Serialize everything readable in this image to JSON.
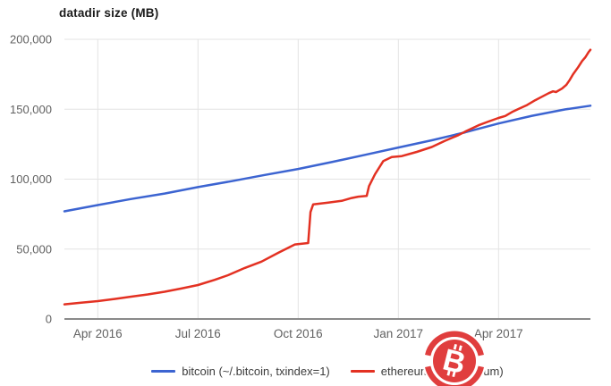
{
  "chart_data": {
    "type": "line",
    "title": "datadir size (MB)",
    "xlabel": "",
    "ylabel": "",
    "x_unit": "months since 2016-03 (0 = Mar 2016, 15.75 = late Jun 2017)",
    "xlim_t": [
      0,
      15.75
    ],
    "ylim": [
      0,
      200000
    ],
    "grid": true,
    "legend_position": "bottom",
    "gridline_color": "#e3e3e3",
    "baseline_color": "#8a8a8a",
    "tick_label_color": "#616161",
    "x_ticks": [
      {
        "label": "Apr 2016",
        "t": 1
      },
      {
        "label": "Jul 2016",
        "t": 4
      },
      {
        "label": "Oct 2016",
        "t": 7
      },
      {
        "label": "Jan 2017",
        "t": 10
      },
      {
        "label": "Apr 2017",
        "t": 13
      }
    ],
    "y_ticks": [
      {
        "label": "0",
        "v": 0
      },
      {
        "label": "50,000",
        "v": 50000
      },
      {
        "label": "100,000",
        "v": 100000
      },
      {
        "label": "150,000",
        "v": 150000
      },
      {
        "label": "200,000",
        "v": 200000
      }
    ],
    "series": [
      {
        "name": "bitcoin (~/.bitcoin, txindex=1)",
        "color": "#3c64d1",
        "points": [
          [
            0,
            77000
          ],
          [
            1,
            81500
          ],
          [
            2,
            85800
          ],
          [
            3,
            89700
          ],
          [
            4,
            94300
          ],
          [
            5,
            98500
          ],
          [
            6,
            103000
          ],
          [
            7,
            107300
          ],
          [
            8,
            112200
          ],
          [
            9,
            117400
          ],
          [
            10,
            122600
          ],
          [
            11,
            127800
          ],
          [
            12,
            133500
          ],
          [
            13,
            139800
          ],
          [
            14,
            145300
          ],
          [
            15,
            149900
          ],
          [
            15.75,
            152500
          ]
        ]
      },
      {
        "name": "ethereum (~/.ethereum)",
        "color": "#e33122",
        "points": [
          [
            0,
            10500
          ],
          [
            0.5,
            11600
          ],
          [
            1,
            12800
          ],
          [
            1.5,
            14300
          ],
          [
            2,
            16000
          ],
          [
            2.5,
            17600
          ],
          [
            3,
            19500
          ],
          [
            3.5,
            21800
          ],
          [
            4,
            24300
          ],
          [
            4.5,
            28000
          ],
          [
            4.9,
            31300
          ],
          [
            5.4,
            36500
          ],
          [
            5.9,
            41000
          ],
          [
            6.4,
            47300
          ],
          [
            6.9,
            53300
          ],
          [
            7.3,
            54300
          ],
          [
            7.37,
            76500
          ],
          [
            7.45,
            82000
          ],
          [
            7.9,
            83200
          ],
          [
            8.3,
            84500
          ],
          [
            8.6,
            86500
          ],
          [
            8.8,
            87500
          ],
          [
            9.05,
            88000
          ],
          [
            9.12,
            95000
          ],
          [
            9.3,
            103500
          ],
          [
            9.55,
            113000
          ],
          [
            9.8,
            115800
          ],
          [
            10.1,
            116500
          ],
          [
            10.55,
            119500
          ],
          [
            11,
            123000
          ],
          [
            11.4,
            127500
          ],
          [
            11.8,
            131500
          ],
          [
            12,
            134000
          ],
          [
            12.4,
            138500
          ],
          [
            12.7,
            141200
          ],
          [
            13,
            143800
          ],
          [
            13.2,
            145200
          ],
          [
            13.4,
            148000
          ],
          [
            13.6,
            150200
          ],
          [
            13.85,
            153000
          ],
          [
            14.1,
            156500
          ],
          [
            14.3,
            159000
          ],
          [
            14.5,
            161500
          ],
          [
            14.63,
            162800
          ],
          [
            14.72,
            162300
          ],
          [
            14.9,
            164800
          ],
          [
            15.03,
            167500
          ],
          [
            15.13,
            171000
          ],
          [
            15.23,
            175000
          ],
          [
            15.38,
            180000
          ],
          [
            15.5,
            184500
          ],
          [
            15.6,
            187200
          ],
          [
            15.7,
            191000
          ],
          [
            15.75,
            192500
          ]
        ]
      }
    ]
  },
  "watermark": {
    "symbol": "B",
    "color": "#e03e3e"
  }
}
